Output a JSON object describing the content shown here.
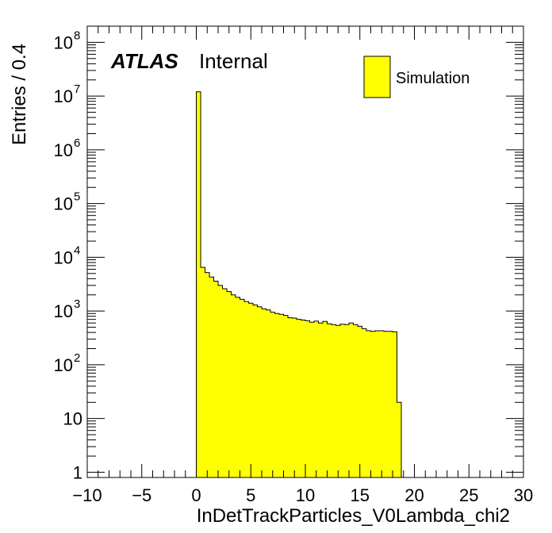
{
  "chart_data": {
    "type": "histogram",
    "title": "",
    "xlabel": "InDetTrackParticles_V0Lambda_chi2",
    "ylabel": "Entries / 0.4",
    "xlim": [
      -10,
      30
    ],
    "ylim": [
      0.8,
      200000000
    ],
    "yscale": "log",
    "grid": false,
    "legend_position": "top-right",
    "bin_width": 0.4,
    "bin_start": 0,
    "x_ticks": [
      "−10",
      "−5",
      "0",
      "5",
      "10",
      "15",
      "20",
      "25",
      "30"
    ],
    "x_tick_values": [
      -10,
      -5,
      0,
      5,
      10,
      15,
      20,
      25,
      30
    ],
    "y_ticks": [
      {
        "value": 1,
        "base": "1",
        "exp": ""
      },
      {
        "value": 10,
        "base": "10",
        "exp": ""
      },
      {
        "value": 100,
        "base": "10",
        "exp": "2"
      },
      {
        "value": 1000,
        "base": "10",
        "exp": "3"
      },
      {
        "value": 10000,
        "base": "10",
        "exp": "4"
      },
      {
        "value": 100000,
        "base": "10",
        "exp": "5"
      },
      {
        "value": 1000000,
        "base": "10",
        "exp": "6"
      },
      {
        "value": 10000000,
        "base": "10",
        "exp": "7"
      },
      {
        "value": 100000000,
        "base": "10",
        "exp": "8"
      }
    ],
    "series": [
      {
        "name": "Simulation",
        "color": "#ffff00",
        "edge_color": "#000000",
        "values": [
          12000000,
          6500,
          5200,
          4300,
          3600,
          3000,
          2600,
          2300,
          2000,
          1800,
          1650,
          1500,
          1400,
          1300,
          1200,
          1100,
          1050,
          950,
          900,
          870,
          830,
          750,
          740,
          700,
          680,
          660,
          620,
          650,
          600,
          640,
          580,
          560,
          540,
          570,
          560,
          600,
          560,
          520,
          470,
          430,
          420,
          430,
          430,
          420,
          420,
          410,
          20
        ]
      }
    ]
  },
  "atlas_label": {
    "bold": "ATLAS",
    "status": "Internal"
  },
  "legend": {
    "label": "Simulation"
  }
}
